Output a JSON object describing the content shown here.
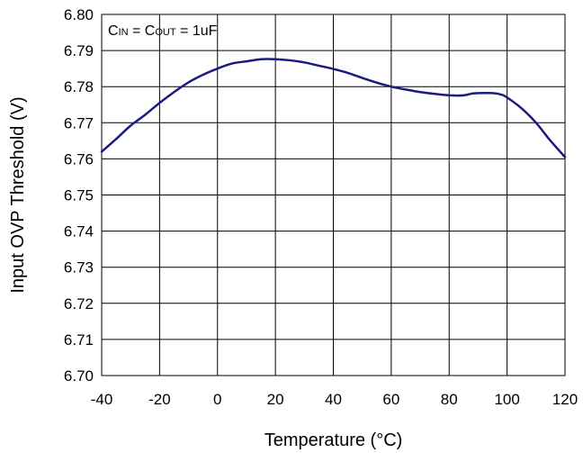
{
  "chart_data": {
    "type": "line",
    "title": "",
    "xlabel": "Temperature (°C)",
    "ylabel": "Input OVP Threshold (V)",
    "annotation": {
      "parts": [
        {
          "text": "C",
          "sub": false
        },
        {
          "text": "IN",
          "sub": true
        },
        {
          "text": " = C",
          "sub": false
        },
        {
          "text": "OUT",
          "sub": true
        },
        {
          "text": " = 1uF",
          "sub": false
        }
      ]
    },
    "xlim": [
      -40,
      120
    ],
    "ylim": [
      6.7,
      6.8
    ],
    "xticks": [
      "-40",
      "-20",
      "0",
      "20",
      "40",
      "60",
      "80",
      "100",
      "120"
    ],
    "yticks": [
      "6.70",
      "6.71",
      "6.72",
      "6.73",
      "6.74",
      "6.75",
      "6.76",
      "6.77",
      "6.78",
      "6.79",
      "6.80"
    ],
    "grid": true,
    "legend": "none",
    "series": [
      {
        "color": "#1a1a80",
        "x": [
          -40,
          -35,
          -30,
          -25,
          -20,
          -15,
          -10,
          -5,
          0,
          5,
          10,
          15,
          20,
          25,
          30,
          35,
          40,
          45,
          50,
          55,
          60,
          65,
          70,
          75,
          80,
          85,
          88,
          90,
          95,
          98,
          100,
          105,
          110,
          115,
          120
        ],
        "y": [
          6.762,
          6.7655,
          6.7692,
          6.7722,
          6.7755,
          6.7785,
          6.7812,
          6.7833,
          6.785,
          6.7864,
          6.787,
          6.7876,
          6.7876,
          6.7873,
          6.7867,
          6.7858,
          6.7849,
          6.7838,
          6.7824,
          6.7811,
          6.78,
          6.7792,
          6.7785,
          6.778,
          6.7776,
          6.7776,
          6.7781,
          6.7782,
          6.7782,
          6.7778,
          6.777,
          6.774,
          6.77,
          6.765,
          6.7605
        ]
      }
    ]
  }
}
